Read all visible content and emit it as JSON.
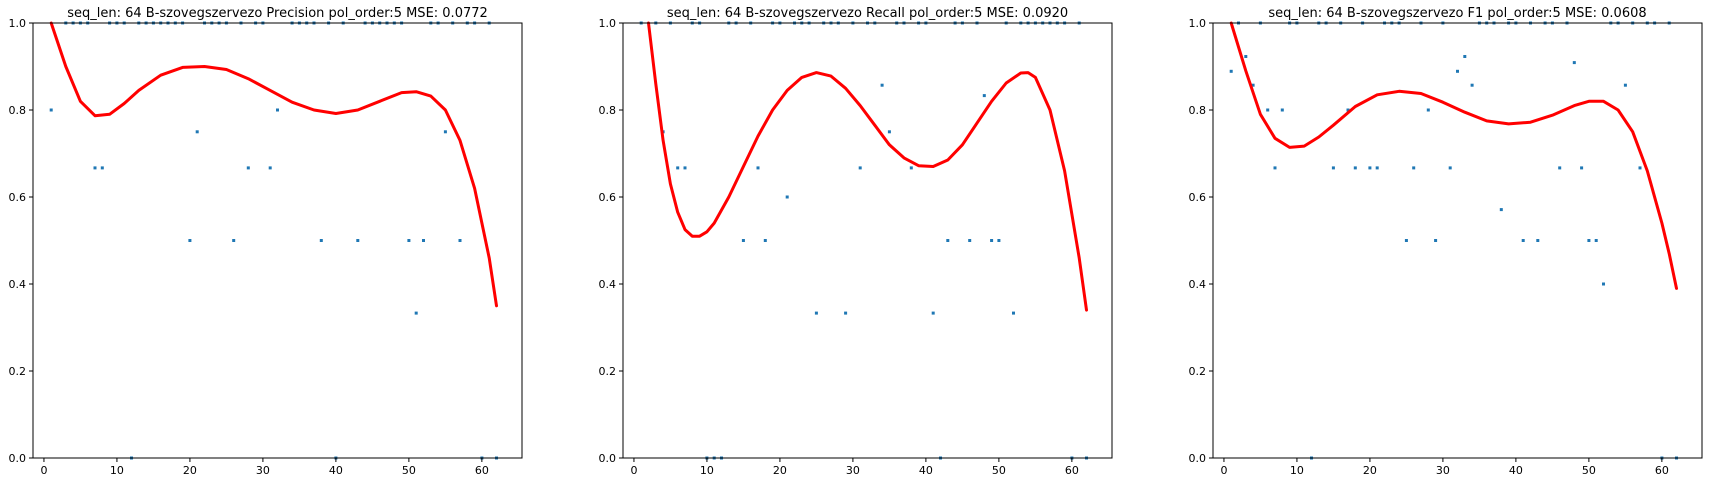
{
  "colors": {
    "points": "#1f77b4",
    "fit": "#ff0000",
    "axes": "#000000"
  },
  "chart_data": [
    {
      "type": "scatter",
      "title": "seq_len: 64    B-szovegszervezo   Precision   pol_order:5   MSE: 0.0772",
      "xlim": [
        -1.5,
        65.5
      ],
      "ylim": [
        0,
        1
      ],
      "xticks": [
        0,
        10,
        20,
        30,
        40,
        50,
        60
      ],
      "xtick_labels": [
        "0",
        "10",
        "20",
        "30",
        "40",
        "50",
        "60"
      ],
      "yticks": [
        0,
        0.2,
        0.4,
        0.6,
        0.8,
        1.0
      ],
      "ytick_labels": [
        "0.0",
        "0.2",
        "0.4",
        "0.6",
        "0.8",
        "1.0"
      ],
      "grid": false,
      "points": [
        [
          1,
          0.8
        ],
        [
          3,
          1
        ],
        [
          4,
          1
        ],
        [
          5,
          1
        ],
        [
          6,
          1
        ],
        [
          7,
          0.667
        ],
        [
          8,
          0.667
        ],
        [
          9,
          1
        ],
        [
          10,
          1
        ],
        [
          11,
          1
        ],
        [
          12,
          0
        ],
        [
          13,
          1
        ],
        [
          14,
          1
        ],
        [
          15,
          1
        ],
        [
          16,
          1
        ],
        [
          17,
          1
        ],
        [
          18,
          1
        ],
        [
          19,
          1
        ],
        [
          20,
          0.5
        ],
        [
          21,
          0.75
        ],
        [
          22,
          1
        ],
        [
          23,
          1
        ],
        [
          24,
          1
        ],
        [
          25,
          1
        ],
        [
          26,
          0.5
        ],
        [
          27,
          1
        ],
        [
          28,
          0.667
        ],
        [
          29,
          1
        ],
        [
          30,
          1
        ],
        [
          31,
          0.667
        ],
        [
          32,
          0.8
        ],
        [
          34,
          1
        ],
        [
          35,
          1
        ],
        [
          36,
          1
        ],
        [
          37,
          1
        ],
        [
          38,
          0.5
        ],
        [
          39,
          1
        ],
        [
          40,
          0
        ],
        [
          41,
          1
        ],
        [
          43,
          0.5
        ],
        [
          44,
          1
        ],
        [
          45,
          1
        ],
        [
          46,
          1
        ],
        [
          47,
          1
        ],
        [
          48,
          1
        ],
        [
          49,
          1
        ],
        [
          50,
          0.5
        ],
        [
          51,
          0.333
        ],
        [
          52,
          0.5
        ],
        [
          53,
          1
        ],
        [
          54,
          1
        ],
        [
          55,
          0.75
        ],
        [
          56,
          1
        ],
        [
          57,
          0.5
        ],
        [
          58,
          1
        ],
        [
          59,
          1
        ],
        [
          60,
          0
        ],
        [
          61,
          1
        ],
        [
          62,
          0
        ]
      ],
      "fit": [
        [
          1,
          1.0
        ],
        [
          3,
          0.9
        ],
        [
          5,
          0.82
        ],
        [
          7,
          0.787
        ],
        [
          9,
          0.79
        ],
        [
          11,
          0.815
        ],
        [
          13,
          0.845
        ],
        [
          16,
          0.88
        ],
        [
          19,
          0.898
        ],
        [
          22,
          0.9
        ],
        [
          25,
          0.893
        ],
        [
          28,
          0.872
        ],
        [
          31,
          0.845
        ],
        [
          34,
          0.818
        ],
        [
          37,
          0.8
        ],
        [
          40,
          0.792
        ],
        [
          43,
          0.8
        ],
        [
          46,
          0.82
        ],
        [
          49,
          0.84
        ],
        [
          51,
          0.842
        ],
        [
          53,
          0.832
        ],
        [
          55,
          0.8
        ],
        [
          57,
          0.73
        ],
        [
          59,
          0.62
        ],
        [
          61,
          0.46
        ],
        [
          62,
          0.35
        ]
      ]
    },
    {
      "type": "scatter",
      "title": "seq_len: 64    B-szovegszervezo   Recall   pol_order:5   MSE: 0.0920",
      "xlim": [
        -1.5,
        65.5
      ],
      "ylim": [
        0,
        1
      ],
      "xticks": [
        0,
        10,
        20,
        30,
        40,
        50,
        60
      ],
      "xtick_labels": [
        "0",
        "10",
        "20",
        "30",
        "40",
        "50",
        "60"
      ],
      "yticks": [
        0,
        0.2,
        0.4,
        0.6,
        0.8,
        1.0
      ],
      "ytick_labels": [
        "0.0",
        "0.2",
        "0.4",
        "0.6",
        "0.8",
        "1.0"
      ],
      "grid": false,
      "points": [
        [
          1,
          1
        ],
        [
          3,
          1
        ],
        [
          4,
          0.75
        ],
        [
          5,
          1
        ],
        [
          6,
          0.667
        ],
        [
          7,
          0.667
        ],
        [
          8,
          1
        ],
        [
          9,
          1
        ],
        [
          10,
          0
        ],
        [
          11,
          0
        ],
        [
          12,
          0
        ],
        [
          13,
          1
        ],
        [
          14,
          1
        ],
        [
          15,
          0.5
        ],
        [
          16,
          1
        ],
        [
          17,
          0.667
        ],
        [
          18,
          0.5
        ],
        [
          19,
          1
        ],
        [
          20,
          1
        ],
        [
          21,
          0.6
        ],
        [
          22,
          1
        ],
        [
          23,
          1
        ],
        [
          24,
          1
        ],
        [
          25,
          0.333
        ],
        [
          26,
          1
        ],
        [
          27,
          1
        ],
        [
          28,
          1
        ],
        [
          29,
          0.333
        ],
        [
          30,
          1
        ],
        [
          31,
          0.667
        ],
        [
          32,
          1
        ],
        [
          33,
          1
        ],
        [
          34,
          0.857
        ],
        [
          35,
          0.75
        ],
        [
          36,
          1
        ],
        [
          37,
          1
        ],
        [
          38,
          0.667
        ],
        [
          39,
          1
        ],
        [
          40,
          1
        ],
        [
          41,
          0.333
        ],
        [
          42,
          0
        ],
        [
          43,
          0.5
        ],
        [
          44,
          1
        ],
        [
          45,
          1
        ],
        [
          46,
          0.5
        ],
        [
          47,
          1
        ],
        [
          48,
          0.833
        ],
        [
          49,
          0.5
        ],
        [
          50,
          0.5
        ],
        [
          51,
          1
        ],
        [
          52,
          0.333
        ],
        [
          53,
          1
        ],
        [
          54,
          1
        ],
        [
          55,
          1
        ],
        [
          56,
          1
        ],
        [
          57,
          1
        ],
        [
          58,
          1
        ],
        [
          59,
          1
        ],
        [
          60,
          0
        ],
        [
          61,
          1
        ],
        [
          62,
          0
        ]
      ],
      "fit": [
        [
          2,
          1.0
        ],
        [
          3,
          0.86
        ],
        [
          4,
          0.73
        ],
        [
          5,
          0.63
        ],
        [
          6,
          0.565
        ],
        [
          7,
          0.525
        ],
        [
          8,
          0.51
        ],
        [
          9,
          0.51
        ],
        [
          10,
          0.52
        ],
        [
          11,
          0.54
        ],
        [
          13,
          0.6
        ],
        [
          15,
          0.67
        ],
        [
          17,
          0.74
        ],
        [
          19,
          0.8
        ],
        [
          21,
          0.845
        ],
        [
          23,
          0.875
        ],
        [
          25,
          0.886
        ],
        [
          27,
          0.878
        ],
        [
          29,
          0.85
        ],
        [
          31,
          0.81
        ],
        [
          33,
          0.765
        ],
        [
          35,
          0.72
        ],
        [
          37,
          0.69
        ],
        [
          39,
          0.672
        ],
        [
          41,
          0.67
        ],
        [
          43,
          0.685
        ],
        [
          45,
          0.72
        ],
        [
          47,
          0.77
        ],
        [
          49,
          0.82
        ],
        [
          51,
          0.862
        ],
        [
          53,
          0.885
        ],
        [
          54,
          0.886
        ],
        [
          55,
          0.875
        ],
        [
          57,
          0.8
        ],
        [
          59,
          0.66
        ],
        [
          61,
          0.46
        ],
        [
          62,
          0.34
        ]
      ]
    },
    {
      "type": "scatter",
      "title": "seq_len: 64    B-szovegszervezo   F1   pol_order:5   MSE: 0.0608",
      "xlim": [
        -1.5,
        65.5
      ],
      "ylim": [
        0,
        1
      ],
      "xticks": [
        0,
        10,
        20,
        30,
        40,
        50,
        60
      ],
      "xtick_labels": [
        "0",
        "10",
        "20",
        "30",
        "40",
        "50",
        "60"
      ],
      "yticks": [
        0,
        0.2,
        0.4,
        0.6,
        0.8,
        1.0
      ],
      "ytick_labels": [
        "0.0",
        "0.2",
        "0.4",
        "0.6",
        "0.8",
        "1.0"
      ],
      "grid": false,
      "points": [
        [
          1,
          0.889
        ],
        [
          2,
          1
        ],
        [
          3,
          0.923
        ],
        [
          4,
          0.857
        ],
        [
          5,
          1
        ],
        [
          6,
          0.8
        ],
        [
          7,
          0.667
        ],
        [
          8,
          0.8
        ],
        [
          9,
          1
        ],
        [
          10,
          1
        ],
        [
          12,
          0
        ],
        [
          13,
          1
        ],
        [
          14,
          1
        ],
        [
          15,
          0.667
        ],
        [
          16,
          1
        ],
        [
          17,
          0.8
        ],
        [
          18,
          0.667
        ],
        [
          19,
          1
        ],
        [
          20,
          0.667
        ],
        [
          21,
          0.667
        ],
        [
          22,
          1
        ],
        [
          23,
          1
        ],
        [
          24,
          1
        ],
        [
          25,
          0.5
        ],
        [
          26,
          0.667
        ],
        [
          27,
          1
        ],
        [
          28,
          0.8
        ],
        [
          29,
          0.5
        ],
        [
          30,
          1
        ],
        [
          31,
          0.667
        ],
        [
          32,
          0.889
        ],
        [
          33,
          0.923
        ],
        [
          34,
          0.857
        ],
        [
          35,
          1
        ],
        [
          36,
          1
        ],
        [
          37,
          1
        ],
        [
          38,
          0.571
        ],
        [
          39,
          1
        ],
        [
          40,
          1
        ],
        [
          41,
          0.5
        ],
        [
          42,
          1
        ],
        [
          43,
          0.5
        ],
        [
          44,
          1
        ],
        [
          45,
          1
        ],
        [
          46,
          0.667
        ],
        [
          47,
          1
        ],
        [
          48,
          0.909
        ],
        [
          49,
          0.667
        ],
        [
          50,
          0.5
        ],
        [
          51,
          0.5
        ],
        [
          52,
          0.4
        ],
        [
          53,
          1
        ],
        [
          54,
          1
        ],
        [
          55,
          0.857
        ],
        [
          56,
          1
        ],
        [
          57,
          0.667
        ],
        [
          58,
          1
        ],
        [
          59,
          1
        ],
        [
          60,
          0
        ],
        [
          61,
          1
        ],
        [
          62,
          0
        ]
      ],
      "fit": [
        [
          1,
          1.0
        ],
        [
          3,
          0.89
        ],
        [
          5,
          0.79
        ],
        [
          7,
          0.735
        ],
        [
          9,
          0.714
        ],
        [
          11,
          0.717
        ],
        [
          13,
          0.738
        ],
        [
          15,
          0.765
        ],
        [
          18,
          0.808
        ],
        [
          21,
          0.835
        ],
        [
          24,
          0.843
        ],
        [
          27,
          0.838
        ],
        [
          30,
          0.818
        ],
        [
          33,
          0.795
        ],
        [
          36,
          0.775
        ],
        [
          39,
          0.768
        ],
        [
          42,
          0.772
        ],
        [
          45,
          0.788
        ],
        [
          48,
          0.81
        ],
        [
          50,
          0.82
        ],
        [
          52,
          0.82
        ],
        [
          54,
          0.8
        ],
        [
          56,
          0.75
        ],
        [
          58,
          0.66
        ],
        [
          60,
          0.54
        ],
        [
          61,
          0.47
        ],
        [
          62,
          0.39
        ]
      ]
    }
  ]
}
